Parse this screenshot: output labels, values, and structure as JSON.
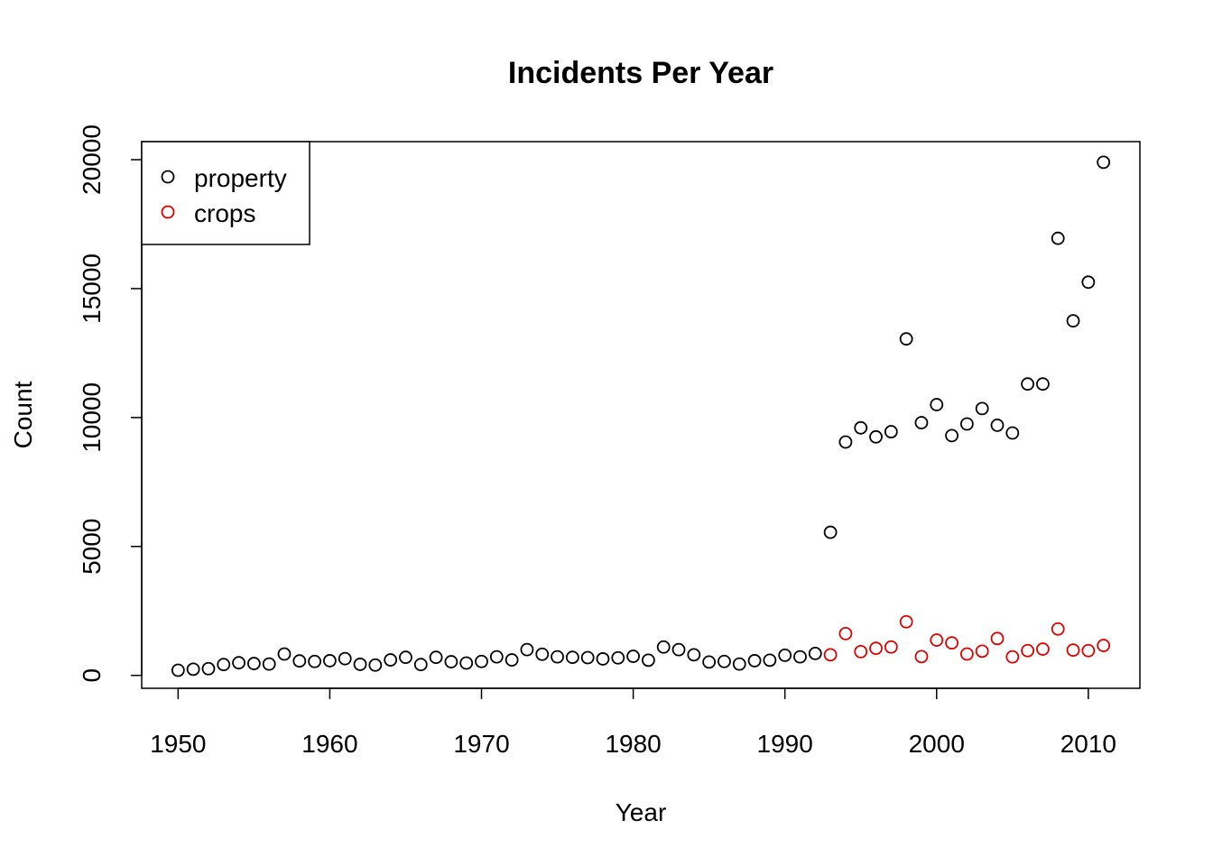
{
  "chart_data": {
    "type": "scatter",
    "title": "Incidents Per Year",
    "xlabel": "Year",
    "ylabel": "Count",
    "xlim": [
      1947.6,
      2013.4
    ],
    "ylim": [
      -500,
      20700
    ],
    "xticks": [
      1950,
      1960,
      1970,
      1980,
      1990,
      2000,
      2010
    ],
    "yticks": [
      0,
      5000,
      10000,
      15000,
      20000
    ],
    "legend_position": "top-left",
    "series": [
      {
        "name": "property",
        "color": "#000000",
        "x": [
          1950,
          1951,
          1952,
          1953,
          1954,
          1955,
          1956,
          1957,
          1958,
          1959,
          1960,
          1961,
          1962,
          1963,
          1964,
          1965,
          1966,
          1967,
          1968,
          1969,
          1970,
          1971,
          1972,
          1973,
          1974,
          1975,
          1976,
          1977,
          1978,
          1979,
          1980,
          1981,
          1982,
          1983,
          1984,
          1985,
          1986,
          1987,
          1988,
          1989,
          1990,
          1991,
          1992,
          1993,
          1994,
          1995,
          1996,
          1997,
          1998,
          1999,
          2000,
          2001,
          2002,
          2003,
          2004,
          2005,
          2006,
          2007,
          2008,
          2009,
          2010,
          2011
        ],
        "y": [
          200,
          240,
          260,
          420,
          490,
          460,
          440,
          830,
          560,
          540,
          570,
          650,
          430,
          400,
          600,
          700,
          420,
          700,
          530,
          480,
          540,
          720,
          600,
          1000,
          820,
          720,
          700,
          690,
          640,
          680,
          740,
          590,
          1100,
          1000,
          800,
          520,
          540,
          440,
          570,
          590,
          780,
          720,
          850,
          5550,
          9050,
          9600,
          9250,
          9450,
          13050,
          9800,
          10500,
          9300,
          9750,
          10350,
          9700,
          9400,
          11300,
          11300,
          16950,
          13750,
          15250,
          19900
        ]
      },
      {
        "name": "crops",
        "color": "#DF0000",
        "x": [
          1993,
          1994,
          1995,
          1996,
          1997,
          1998,
          1999,
          2000,
          2001,
          2002,
          2003,
          2004,
          2005,
          2006,
          2007,
          2008,
          2009,
          2010,
          2011
        ],
        "y": [
          800,
          1620,
          920,
          1050,
          1100,
          2080,
          730,
          1370,
          1260,
          830,
          940,
          1430,
          720,
          960,
          1020,
          1800,
          980,
          960,
          1160
        ]
      }
    ]
  }
}
